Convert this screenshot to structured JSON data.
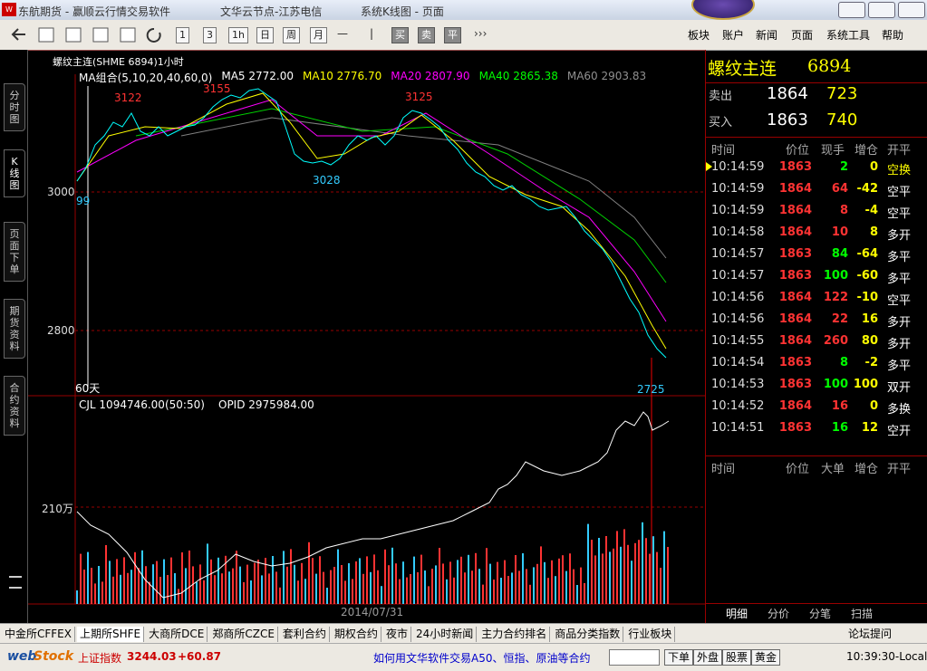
{
  "title_bar": {
    "app": "东航期货  -  赢顺云行情交易软件",
    "node": "文华云节点-江苏电信",
    "page": "系统K线图 - 页面"
  },
  "toolbar": {
    "periods": [
      "1",
      "3",
      "1h",
      "日",
      "周",
      "月"
    ],
    "trade": [
      "买",
      "卖",
      "平"
    ],
    "more": "›››",
    "menu": [
      "板块",
      "账户",
      "新闻",
      "页面",
      "系统工具",
      "帮助"
    ]
  },
  "sidebar_tabs": [
    "分时图",
    "K线图",
    "页面下单",
    "期货资料",
    "合约资料"
  ],
  "chart": {
    "contract": "螺纹主连(SHME 6894)1小时",
    "ma": [
      {
        "label": "MA组合(5,10,20,40,60,0)",
        "color": "#ffffff"
      },
      {
        "label": "MA5 2772.00",
        "color": "#ffffff"
      },
      {
        "label": "MA10 2776.70",
        "color": "#ffff00"
      },
      {
        "label": "MA20 2807.90",
        "color": "#ff00ff"
      },
      {
        "label": "MA40 2865.38",
        "color": "#00ff00"
      },
      {
        "label": "MA60 2903.83",
        "color": "#909090"
      }
    ],
    "y_labels": [
      "3000",
      "2800"
    ],
    "annotations": [
      "3122",
      "3155",
      "3125",
      "3028",
      "2725",
      "99",
      "60天"
    ],
    "volume_labels": {
      "cjl": "CJL 1094746.00(50:50)",
      "opid": "OPID 2975984.00",
      "scale": "210万"
    },
    "date": "2014/07/31"
  },
  "quote": {
    "name": "螺纹主连",
    "code": "6894",
    "ask_label": "卖出",
    "ask_price": 1864,
    "ask_volume": 723,
    "bid_label": "买入",
    "bid_price": 1863,
    "bid_volume": 740
  },
  "trades": {
    "headers": [
      "时间",
      "价位",
      "现手",
      "增仓",
      "开平"
    ],
    "rows": [
      [
        "10:14:59",
        1863,
        2,
        0,
        "空换"
      ],
      [
        "10:14:59",
        1864,
        64,
        -42,
        "空平"
      ],
      [
        "10:14:59",
        1864,
        8,
        -4,
        "空平"
      ],
      [
        "10:14:58",
        1864,
        10,
        8,
        "多开"
      ],
      [
        "10:14:57",
        1863,
        84,
        -64,
        "多平"
      ],
      [
        "10:14:57",
        1863,
        100,
        -60,
        "多平"
      ],
      [
        "10:14:56",
        1864,
        122,
        -10,
        "空平"
      ],
      [
        "10:14:56",
        1864,
        22,
        16,
        "多开"
      ],
      [
        "10:14:55",
        1864,
        260,
        80,
        "多开"
      ],
      [
        "10:14:54",
        1863,
        8,
        -2,
        "多平"
      ],
      [
        "10:14:53",
        1863,
        100,
        100,
        "双开"
      ],
      [
        "10:14:52",
        1864,
        16,
        0,
        "多换"
      ],
      [
        "10:14:51",
        1863,
        16,
        12,
        "空开"
      ]
    ]
  },
  "big_orders": {
    "headers": [
      "时间",
      "价位",
      "大单",
      "增仓",
      "开平"
    ]
  },
  "panel_tabs": [
    "明细",
    "分价",
    "分笔",
    "扫描"
  ],
  "exchange_tabs": [
    "中金所CFFEX",
    "上期所SHFE",
    "大商所DCE",
    "郑商所CZCE",
    "套利合约",
    "期权合约",
    "夜市",
    "24小时新闻",
    "主力合约排名",
    "商品分类指数",
    "行业板块"
  ],
  "forum": "论坛提问",
  "status": {
    "logo_a": "web",
    "logo_b": "Stock",
    "index_name": "上证指数",
    "index_value": 3244.03,
    "index_change": "+60.87",
    "ticker": "如何用文华软件交易A50、恒指、原油等合约",
    "buttons": [
      "下单",
      "外盘",
      "股票",
      "黄金"
    ],
    "time": "10:39:30-Local"
  }
}
